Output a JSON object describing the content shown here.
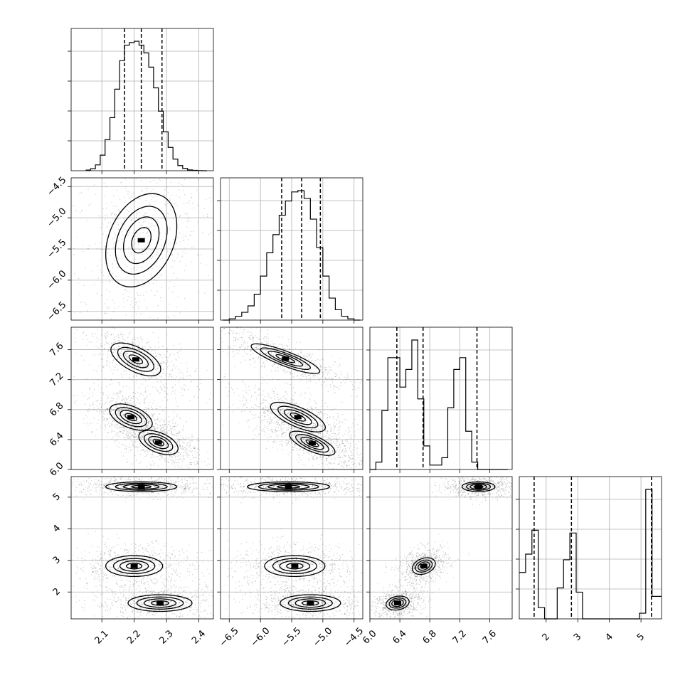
{
  "chart_data": {
    "type": "corner",
    "parameters": [
      {
        "ticks": [
          "2.1",
          "2.2",
          "2.3",
          "2.4"
        ],
        "tick_values": [
          2.1,
          2.2,
          2.3,
          2.4
        ],
        "range": [
          2.005,
          2.445
        ]
      },
      {
        "ticks": [
          "−6.5",
          "−6.0",
          "−5.5",
          "−5.0",
          "−4.5"
        ],
        "tick_values": [
          -6.5,
          -6.0,
          -5.5,
          -5.0,
          -4.5
        ],
        "range": [
          -6.64,
          -4.36
        ]
      },
      {
        "ticks": [
          "6.0",
          "6.4",
          "6.8",
          "7.2",
          "7.6"
        ],
        "tick_values": [
          6.0,
          6.4,
          6.8,
          7.2,
          7.6
        ],
        "range": [
          6.0,
          7.9
        ]
      },
      {
        "ticks": [
          "2",
          "3",
          "4",
          "5"
        ],
        "tick_values": [
          2,
          3,
          4,
          5
        ],
        "range": [
          1.15,
          5.65
        ]
      }
    ],
    "grid": true,
    "histograms": [
      {
        "param": 0,
        "bin_edges": [
          2.05,
          2.065,
          2.08,
          2.095,
          2.11,
          2.125,
          2.14,
          2.155,
          2.17,
          2.185,
          2.2,
          2.215,
          2.23,
          2.245,
          2.26,
          2.275,
          2.29,
          2.305,
          2.32,
          2.335,
          2.35,
          2.365,
          2.38,
          2.395,
          2.41,
          2.425
        ],
        "counts": [
          0.005,
          0.015,
          0.045,
          0.12,
          0.24,
          0.41,
          0.63,
          0.85,
          0.97,
          0.99,
          1.0,
          0.97,
          0.91,
          0.8,
          0.64,
          0.46,
          0.3,
          0.18,
          0.09,
          0.04,
          0.018,
          0.006,
          0.003,
          0.001,
          0.0
        ],
        "quantiles": [
          2.17,
          2.222,
          2.286
        ]
      },
      {
        "param": 1,
        "bin_edges": [
          -6.6,
          -6.5,
          -6.4,
          -6.3,
          -6.2,
          -6.1,
          -6.0,
          -5.9,
          -5.8,
          -5.7,
          -5.6,
          -5.5,
          -5.4,
          -5.3,
          -5.2,
          -5.1,
          -5.0,
          -4.9,
          -4.8,
          -4.7,
          -4.6,
          -4.5,
          -4.4
        ],
        "counts": [
          0.0,
          0.01,
          0.03,
          0.06,
          0.11,
          0.2,
          0.34,
          0.52,
          0.66,
          0.81,
          0.92,
          0.99,
          1.0,
          0.94,
          0.78,
          0.56,
          0.34,
          0.17,
          0.08,
          0.03,
          0.01,
          0.0
        ],
        "quantiles": [
          -5.66,
          -5.34,
          -5.04
        ]
      },
      {
        "param": 2,
        "bin_edges": [
          6.0,
          6.08,
          6.16,
          6.24,
          6.32,
          6.4,
          6.48,
          6.56,
          6.64,
          6.72,
          6.8,
          6.88,
          6.96,
          7.04,
          7.12,
          7.2,
          7.28,
          7.36,
          7.44,
          7.52,
          7.6,
          7.68,
          7.76,
          7.84
        ],
        "counts": [
          0.0,
          0.05,
          0.4,
          0.76,
          0.76,
          0.56,
          0.68,
          0.88,
          0.48,
          0.16,
          0.03,
          0.03,
          0.08,
          0.42,
          0.68,
          0.76,
          0.26,
          0.05,
          0.0,
          0.0,
          0.0,
          0.0,
          0.0
        ],
        "quantiles": [
          6.36,
          6.71,
          7.43
        ]
      },
      {
        "param": 3,
        "bin_edges": [
          1.15,
          1.35,
          1.55,
          1.75,
          1.95,
          2.15,
          2.35,
          2.55,
          2.75,
          2.95,
          3.15,
          3.35,
          3.55,
          3.75,
          3.95,
          4.15,
          4.35,
          4.55,
          4.75,
          4.95,
          5.15,
          5.35,
          5.55,
          5.65
        ],
        "counts": [
          0.33,
          0.46,
          0.63,
          0.08,
          0.0,
          0.0,
          0.22,
          0.42,
          0.61,
          0.19,
          0.0,
          0.0,
          0.0,
          0.0,
          0.0,
          0.0,
          0.0,
          0.0,
          0.0,
          0.04,
          0.92,
          0.16,
          0.16
        ],
        "quantiles": [
          1.62,
          2.8,
          5.33
        ]
      }
    ],
    "pairs": [
      {
        "row": 1,
        "col": 0,
        "modes": [
          {
            "cx": 2.222,
            "cy": -5.36,
            "sx": 0.05,
            "sy": 0.34,
            "rho": 0.3,
            "w": 1
          }
        ]
      },
      {
        "row": 2,
        "col": 0,
        "modes": [
          {
            "cx": 2.205,
            "cy": 7.47,
            "sx": 0.035,
            "sy": 0.1,
            "rho": -0.6,
            "w": 1
          },
          {
            "cx": 2.19,
            "cy": 6.7,
            "sx": 0.03,
            "sy": 0.08,
            "rho": -0.5,
            "w": 1
          },
          {
            "cx": 2.275,
            "cy": 6.36,
            "sx": 0.03,
            "sy": 0.08,
            "rho": -0.5,
            "w": 0.9
          }
        ]
      },
      {
        "row": 3,
        "col": 0,
        "modes": [
          {
            "cx": 2.222,
            "cy": 5.33,
            "sx": 0.05,
            "sy": 0.07,
            "rho": 0.0,
            "w": 1
          },
          {
            "cx": 2.2,
            "cy": 2.82,
            "sx": 0.04,
            "sy": 0.15,
            "rho": 0.0,
            "w": 1
          },
          {
            "cx": 2.28,
            "cy": 1.65,
            "sx": 0.045,
            "sy": 0.12,
            "rho": 0.0,
            "w": 1
          }
        ]
      },
      {
        "row": 2,
        "col": 1,
        "modes": [
          {
            "cx": -5.6,
            "cy": 7.48,
            "sx": 0.25,
            "sy": 0.09,
            "rho": -0.85,
            "w": 1
          },
          {
            "cx": -5.4,
            "cy": 6.7,
            "sx": 0.2,
            "sy": 0.09,
            "rho": -0.7,
            "w": 1
          },
          {
            "cx": -5.17,
            "cy": 6.35,
            "sx": 0.18,
            "sy": 0.08,
            "rho": -0.7,
            "w": 0.9
          }
        ]
      },
      {
        "row": 3,
        "col": 1,
        "modes": [
          {
            "cx": -5.55,
            "cy": 5.33,
            "sx": 0.3,
            "sy": 0.07,
            "rho": 0.0,
            "w": 1
          },
          {
            "cx": -5.45,
            "cy": 2.82,
            "sx": 0.22,
            "sy": 0.15,
            "rho": 0.0,
            "w": 1
          },
          {
            "cx": -5.2,
            "cy": 1.65,
            "sx": 0.22,
            "sy": 0.12,
            "rho": 0.0,
            "w": 1
          }
        ]
      },
      {
        "row": 3,
        "col": 2,
        "modes": [
          {
            "cx": 7.45,
            "cy": 5.33,
            "sx": 0.1,
            "sy": 0.07,
            "rho": 0.0,
            "w": 1
          },
          {
            "cx": 6.72,
            "cy": 2.82,
            "sx": 0.07,
            "sy": 0.12,
            "rho": 0.3,
            "w": 1
          },
          {
            "cx": 6.37,
            "cy": 1.65,
            "sx": 0.07,
            "sy": 0.1,
            "rho": 0.2,
            "w": 1
          }
        ]
      }
    ]
  }
}
